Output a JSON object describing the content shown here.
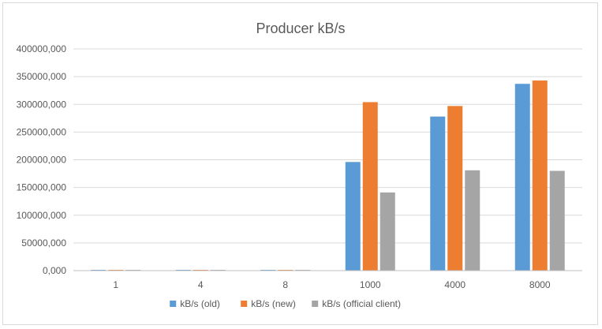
{
  "chart_data": {
    "type": "bar",
    "title": "Producer kB/s",
    "xlabel": "",
    "ylabel": "",
    "categories": [
      "1",
      "4",
      "8",
      "1000",
      "4000",
      "8000"
    ],
    "series": [
      {
        "name": "kB/s (old)",
        "color": "#5b9bd5",
        "values": [
          1000,
          2500,
          4500,
          196000000,
          278000000,
          337000000
        ]
      },
      {
        "name": "kB/s (new)",
        "color": "#ed7d31",
        "values": [
          1500,
          6000,
          12000,
          304000000,
          297000000,
          343000000
        ]
      },
      {
        "name": "kB/s (official client)",
        "color": "#a5a5a5",
        "values": [
          1200,
          5500,
          10000,
          141000000,
          181000000,
          180000000
        ]
      }
    ],
    "ylim": [
      0,
      400000000
    ],
    "yticks": [
      {
        "value": 0,
        "label": "0,000"
      },
      {
        "value": 50000000,
        "label": "50000,000"
      },
      {
        "value": 100000000,
        "label": "100000,000"
      },
      {
        "value": 150000000,
        "label": "150000,000"
      },
      {
        "value": 200000000,
        "label": "200000,000"
      },
      {
        "value": 250000000,
        "label": "250000,000"
      },
      {
        "value": 300000000,
        "label": "300000,000"
      },
      {
        "value": 350000000,
        "label": "350000,000"
      },
      {
        "value": 400000000,
        "label": "400000,000"
      }
    ],
    "grid": true,
    "legend_position": "bottom",
    "colors": {
      "gridline": "#d9d9d9",
      "axis": "#bfbfbf",
      "text": "#595959"
    }
  }
}
